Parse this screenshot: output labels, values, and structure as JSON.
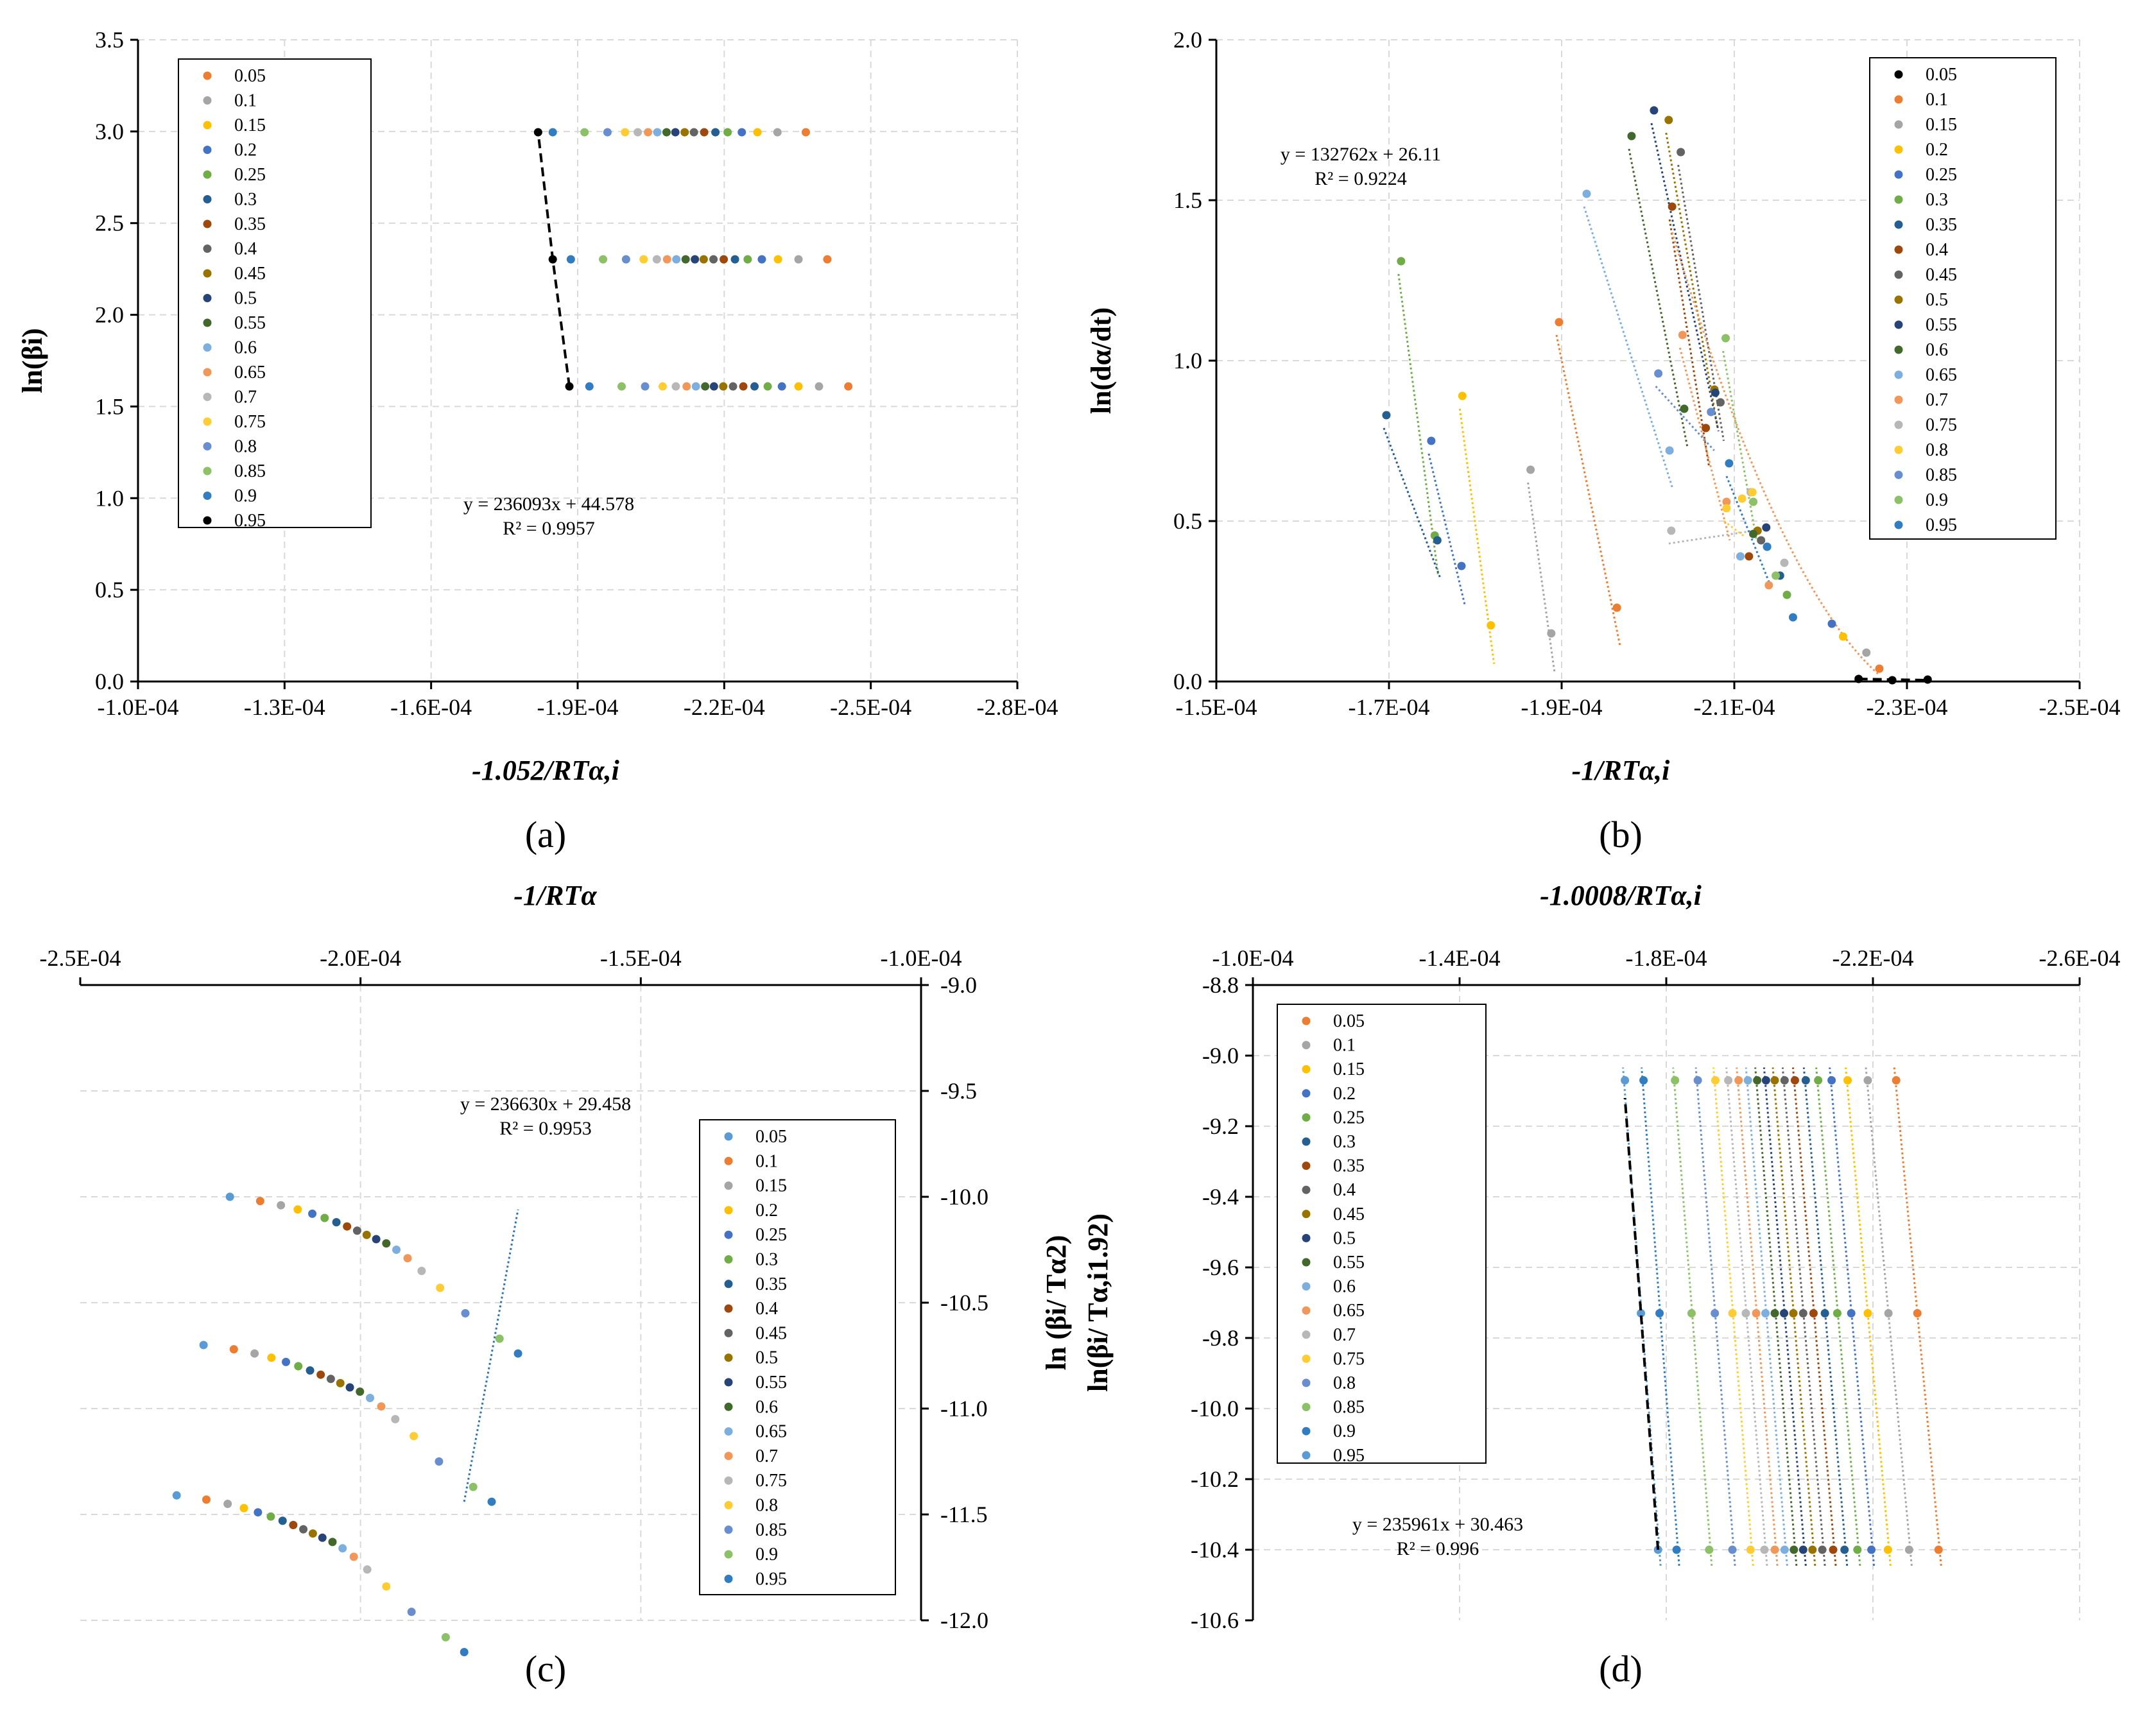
{
  "chart_data": [
    {
      "id": "a",
      "type": "scatter",
      "panel_label": "(a)",
      "xlabel": "-1.052/RTα,i",
      "ylabel": "ln(βi)",
      "xlim": [
        -0.0001,
        -0.00028
      ],
      "ylim": [
        0,
        3.5
      ],
      "xticks": [
        -0.0001,
        -0.00013,
        -0.00016,
        -0.00019,
        -0.00022,
        -0.00025,
        -0.00028
      ],
      "xtick_labels": [
        "-1.0E-04",
        "-1.3E-04",
        "-1.6E-04",
        "-1.9E-04",
        "-2.2E-04",
        "-2.5E-04",
        "-2.8E-04"
      ],
      "yticks": [
        0,
        0.5,
        1,
        1.5,
        2,
        2.5,
        3,
        3.5
      ],
      "ytick_labels": [
        "0.0",
        "0.5",
        "1.0",
        "1.5",
        "2.0",
        "2.5",
        "3.0",
        "3.5"
      ],
      "grid": true,
      "legend_position": "top-left",
      "legend": [
        "0.05",
        "0.1",
        "0.15",
        "0.2",
        "0.25",
        "0.3",
        "0.35",
        "0.4",
        "0.45",
        "0.5",
        "0.55",
        "0.6",
        "0.65",
        "0.7",
        "0.75",
        "0.8",
        "0.85",
        "0.9",
        "0.95"
      ],
      "legend_colors": [
        "#ED7D31",
        "#A5A5A5",
        "#FFC000",
        "#4472C4",
        "#70AD47",
        "#255E91",
        "#9E480E",
        "#636363",
        "#997300",
        "#264478",
        "#43682B",
        "#7CAFDD",
        "#F1975A",
        "#B7B7B7",
        "#FFCD33",
        "#698ED0",
        "#8CC168",
        "#327DC2",
        "#000000"
      ],
      "series_y": [
        1.6094,
        2.3026,
        2.9957
      ],
      "series_x": [
        [
          -0.0002454,
          -0.0002394,
          -0.0002352,
          -0.0002318,
          -0.0002289,
          -0.0002262,
          -0.0002239,
          -0.0002218,
          -0.0002198,
          -0.0002179,
          -0.0002161,
          -0.0002142,
          -0.0002123,
          -0.0002101,
          -0.0002074,
          -0.0002038,
          -0.000199,
          -0.0001924,
          -0.0001883
        ],
        [
          -0.0002411,
          -0.0002352,
          -0.000231,
          -0.0002277,
          -0.0002248,
          -0.0002222,
          -0.0002199,
          -0.0002178,
          -0.0002158,
          -0.000214,
          -0.0002121,
          -0.0002102,
          -0.0002083,
          -0.0002062,
          -0.0002035,
          -0.0001999,
          -0.0001952,
          -0.0001886,
          -0.0001849
        ],
        [
          -0.0002367,
          -0.0002309,
          -0.0002268,
          -0.0002236,
          -0.0002207,
          -0.0002182,
          -0.0002159,
          -0.0002138,
          -0.0002119,
          -0.00021,
          -0.0002082,
          -0.0002063,
          -0.0002044,
          -0.0002023,
          -0.0001997,
          -0.0001961,
          -0.0001914,
          -0.0001849,
          -0.0001819
        ]
      ],
      "fit_line": {
        "x": [
          -0.0001883,
          -0.0001849,
          -0.0001819
        ],
        "y": [
          1.6094,
          2.3026,
          2.9957
        ],
        "color": "#000000"
      },
      "annotation": {
        "equation": "y = 236093x + 44.578",
        "r2": "R² = 0.9957"
      }
    },
    {
      "id": "b",
      "type": "scatter",
      "panel_label": "(b)",
      "xlabel": "-1/RTα,i",
      "ylabel": "ln(dα/dt)",
      "xlim": [
        -0.00015,
        -0.00025
      ],
      "ylim": [
        0,
        2.0
      ],
      "xticks": [
        -0.00015,
        -0.00017,
        -0.00019,
        -0.00021,
        -0.00023,
        -0.00025
      ],
      "xtick_labels": [
        "-1.5E-04",
        "-1.7E-04",
        "-1.9E-04",
        "-2.1E-04",
        "-2.3E-04",
        "-2.5E-04"
      ],
      "yticks": [
        0,
        0.5,
        1,
        1.5,
        2
      ],
      "ytick_labels": [
        "0.0",
        "0.5",
        "1.0",
        "1.5",
        "2.0"
      ],
      "grid": true,
      "legend_position": "top-right",
      "legend": [
        "0.05",
        "0.1",
        "0.15",
        "0.2",
        "0.25",
        "0.3",
        "0.35",
        "0.4",
        "0.45",
        "0.5",
        "0.55",
        "0.6",
        "0.65",
        "0.7",
        "0.75",
        "0.8",
        "0.85",
        "0.9",
        "0.95"
      ],
      "legend_colors": [
        "#000000",
        "#ED7D31",
        "#A5A5A5",
        "#FFC000",
        "#4472C4",
        "#70AD47",
        "#255E91",
        "#9E480E",
        "#636363",
        "#997300",
        "#264478",
        "#43682B",
        "#7CAFDD",
        "#F1975A",
        "#B7B7B7",
        "#FFCD33",
        "#698ED0",
        "#8CC168",
        "#327DC2"
      ],
      "series_points": [
        [
          [
            -0.0002324,
            0.006
          ],
          [
            -0.0002283,
            0.004
          ],
          [
            -0.0002244,
            0.008
          ]
        ],
        [
          [
            -0.0002268,
            0.04
          ],
          [
            -0.0001964,
            0.23
          ],
          [
            -0.0001897,
            1.12
          ]
        ],
        [
          [
            -0.0002253,
            0.09
          ],
          [
            -0.0001888,
            0.15
          ],
          [
            -0.0001864,
            0.66
          ]
        ],
        [
          [
            -0.0002226,
            0.14
          ],
          [
            -0.0001818,
            0.175
          ],
          [
            -0.0001785,
            0.89
          ]
        ],
        [
          [
            -0.0002213,
            0.18
          ],
          [
            -0.0001784,
            0.36
          ],
          [
            -0.0001749,
            0.75
          ]
        ],
        [
          [
            -0.0002161,
            0.27
          ],
          [
            -0.0001753,
            0.455
          ],
          [
            -0.0001714,
            1.31
          ]
        ],
        [
          [
            -0.0002153,
            0.33
          ],
          [
            -0.0001756,
            0.44
          ],
          [
            -0.0001697,
            0.83
          ]
        ],
        [
          [
            -0.0002117,
            0.39
          ],
          [
            -0.0002067,
            0.79
          ],
          [
            -0.0002028,
            1.48
          ]
        ],
        [
          [
            -0.0002131,
            0.44
          ],
          [
            -0.0002084,
            0.87
          ],
          [
            -0.0002038,
            1.65
          ]
        ],
        [
          [
            -0.0002127,
            0.47
          ],
          [
            -0.0002077,
            0.91
          ],
          [
            -0.0002024,
            1.75
          ]
        ],
        [
          [
            -0.0002137,
            0.48
          ],
          [
            -0.0002078,
            0.9
          ],
          [
            -0.0002007,
            1.78
          ]
        ],
        [
          [
            -0.0002122,
            0.46
          ],
          [
            -0.0002042,
            0.85
          ],
          [
            -0.0001981,
            1.7
          ]
        ],
        [
          [
            -0.0002107,
            0.39
          ],
          [
            -0.0002025,
            0.72
          ],
          [
            -0.0001929,
            1.52
          ]
        ],
        [
          [
            -0.000214,
            0.3
          ],
          [
            -0.0002091,
            0.56
          ],
          [
            -0.000204,
            1.08
          ]
        ],
        [
          [
            -0.0002158,
            0.37
          ],
          [
            -0.0002119,
            0.59
          ],
          [
            -0.0002027,
            0.47
          ]
        ],
        [
          [
            -0.0002121,
            0.59
          ],
          [
            -0.0002109,
            0.57
          ],
          [
            -0.0002091,
            0.54
          ]
        ],
        [
          [
            -0.0002138,
            0.42
          ],
          [
            -0.0002073,
            0.84
          ],
          [
            -0.0002012,
            0.96
          ]
        ],
        [
          [
            -0.0002148,
            0.33
          ],
          [
            -0.0002122,
            0.56
          ],
          [
            -0.000209,
            1.07
          ]
        ],
        [
          [
            -0.0002168,
            0.2
          ],
          [
            -0.0002138,
            0.42
          ],
          [
            -0.0002094,
            0.68
          ]
        ]
      ],
      "annotation": {
        "equation": "y = 132762x + 26.11",
        "r2": "R² = 0.9224"
      }
    },
    {
      "id": "c",
      "type": "scatter",
      "panel_label": "(c)",
      "xlabel": "-1/RTα",
      "ylabel": "ln (βi/ Tα2)",
      "xlim": [
        -0.00025,
        -0.0001
      ],
      "ylim": [
        -12.0,
        -9.0
      ],
      "xticks": [
        -0.00025,
        -0.0002,
        -0.00015,
        -0.0001
      ],
      "xtick_labels": [
        "-2.5E-04",
        "-2.0E-04",
        "-1.5E-04",
        "-1.0E-04"
      ],
      "yticks": [
        -9,
        -9.5,
        -10,
        -10.5,
        -11,
        -11.5,
        -12
      ],
      "ytick_labels": [
        "-9.0",
        "-9.5",
        "-10.0",
        "-10.5",
        "-11.0",
        "-11.5",
        "-12.0"
      ],
      "grid": true,
      "legend_position": "middle-right",
      "legend": [
        "0.05",
        "0.1",
        "0.15",
        "0.2",
        "0.25",
        "0.3",
        "0.35",
        "0.4",
        "0.45",
        "0.5",
        "0.55",
        "0.6",
        "0.65",
        "0.7",
        "0.75",
        "0.8",
        "0.85",
        "0.9",
        "0.95"
      ],
      "legend_colors": [
        "#5B9BD5",
        "#ED7D31",
        "#A5A5A5",
        "#FFC000",
        "#4472C4",
        "#70AD47",
        "#255E91",
        "#9E480E",
        "#636363",
        "#997300",
        "#264478",
        "#43682B",
        "#7CAFDD",
        "#F1975A",
        "#B7B7B7",
        "#FFCD33",
        "#698ED0",
        "#8CC168",
        "#327DC2"
      ],
      "series_y": [
        -11.44,
        -10.74,
        -10.06
      ],
      "series_x": [
        [
          -0.0002328,
          -0.0002275,
          -0.0002237,
          -0.0002208,
          -0.0002183,
          -0.000216,
          -0.0002139,
          -0.000212,
          -0.0002102,
          -0.0002085,
          -0.0002068,
          -0.000205,
          -0.0002032,
          -0.0002012,
          -0.0001988,
          -0.0001954,
          -0.0001909,
          -0.0001848,
          -0.0001815
        ],
        [
          -0.000228,
          -0.0002226,
          -0.0002189,
          -0.0002159,
          -0.0002133,
          -0.0002111,
          -0.000209,
          -0.0002071,
          -0.0002053,
          -0.0002036,
          -0.0002019,
          -0.0002001,
          -0.0001983,
          -0.0001963,
          -0.0001938,
          -0.0001905,
          -0.000186,
          -0.0001799,
          -0.0001766
        ],
        [
          -0.0002233,
          -0.0002179,
          -0.0002142,
          -0.0002112,
          -0.0002086,
          -0.0002064,
          -0.0002043,
          -0.0002024,
          -0.0002006,
          -0.0001989,
          -0.0001972,
          -0.0001954,
          -0.0001936,
          -0.0001916,
          -0.0001891,
          -0.0001858,
          -0.0001813,
          -0.0001752,
          -0.0001719
        ]
      ],
      "series_y_points": [
        [
          -11.41,
          -11.43,
          -11.45,
          -11.47,
          -11.49,
          -11.51,
          -11.53,
          -11.55,
          -11.57,
          -11.59,
          -11.61,
          -11.63,
          -11.66,
          -11.7,
          -11.76,
          -11.84,
          -11.96,
          -12.08,
          -12.15
        ],
        [
          -10.7,
          -10.72,
          -10.74,
          -10.76,
          -10.78,
          -10.8,
          -10.82,
          -10.84,
          -10.86,
          -10.88,
          -10.9,
          -10.92,
          -10.95,
          -10.99,
          -11.05,
          -11.13,
          -11.25,
          -11.37,
          -11.44
        ],
        [
          -10.0,
          -10.02,
          -10.04,
          -10.06,
          -10.08,
          -10.1,
          -10.12,
          -10.14,
          -10.16,
          -10.18,
          -10.2,
          -10.22,
          -10.25,
          -10.29,
          -10.35,
          -10.43,
          -10.55,
          -10.67,
          -10.74
        ]
      ],
      "fit_line": {
        "x": [
          -0.0001815,
          -0.0001766,
          -0.0001719
        ],
        "y": [
          -11.44,
          -10.74,
          -10.06
        ],
        "color": "#2E75B6"
      },
      "annotation": {
        "equation": "y = 236630x + 29.458",
        "r2": "R² = 0.9953"
      }
    },
    {
      "id": "d",
      "type": "scatter",
      "panel_label": "(d)",
      "xlabel": "-1.0008/RTα,i",
      "ylabel": "ln(βi/ Tα,i1.92)",
      "xlim": [
        -0.0001,
        -0.00026
      ],
      "ylim": [
        -10.6,
        -8.8
      ],
      "xticks": [
        -0.0001,
        -0.00014,
        -0.00018,
        -0.00022,
        -0.00026
      ],
      "xtick_labels": [
        "-1.0E-04",
        "-1.4E-04",
        "-1.8E-04",
        "-2.2E-04",
        "-2.6E-04"
      ],
      "yticks": [
        -8.8,
        -9.0,
        -9.2,
        -9.4,
        -9.6,
        -9.8,
        -10.0,
        -10.2,
        -10.4,
        -10.6
      ],
      "ytick_labels": [
        "-8.8",
        "-9.0",
        "-9.2",
        "-9.4",
        "-9.6",
        "-9.8",
        "-10.0",
        "-10.2",
        "-10.4",
        "-10.6"
      ],
      "grid": true,
      "legend_position": "top-left",
      "legend": [
        "0.05",
        "0.1",
        "0.15",
        "0.2",
        "0.25",
        "0.3",
        "0.35",
        "0.4",
        "0.45",
        "0.5",
        "0.55",
        "0.6",
        "0.65",
        "0.7",
        "0.75",
        "0.8",
        "0.85",
        "0.9",
        "0.95"
      ],
      "legend_colors": [
        "#ED7D31",
        "#A5A5A5",
        "#FFC000",
        "#4472C4",
        "#70AD47",
        "#255E91",
        "#9E480E",
        "#636363",
        "#997300",
        "#264478",
        "#43682B",
        "#7CAFDD",
        "#F1975A",
        "#B7B7B7",
        "#FFCD33",
        "#698ED0",
        "#8CC168",
        "#327DC2",
        "#5B9BD5"
      ],
      "series_y": [
        -10.4,
        -9.73,
        -9.07
      ],
      "series_x": [
        [
          -0.0002327,
          -0.000227,
          -0.0002229,
          -0.0002197,
          -0.000217,
          -0.0002145,
          -0.0002123,
          -0.0002102,
          -0.0002083,
          -0.0002065,
          -0.0002047,
          -0.0002029,
          -0.000201,
          -0.000199,
          -0.0001963,
          -0.0001928,
          -0.0001883,
          -0.000182,
          -0.0001784
        ],
        [
          -0.0002286,
          -0.000223,
          -0.000219,
          -0.0002158,
          -0.0002131,
          -0.0002107,
          -0.0002085,
          -0.0002065,
          -0.0002046,
          -0.0002028,
          -0.000201,
          -0.0001992,
          -0.0001974,
          -0.0001954,
          -0.0001928,
          -0.0001894,
          -0.0001849,
          -0.0001787,
          -0.0001751
        ],
        [
          -0.0002245,
          -0.000219,
          -0.0002151,
          -0.000212,
          -0.0002094,
          -0.000207,
          -0.0002049,
          -0.0002029,
          -0.000201,
          -0.0001993,
          -0.0001976,
          -0.0001958,
          -0.000194,
          -0.000192,
          -0.0001895,
          -0.0001861,
          -0.0001817,
          -0.0001756,
          -0.000172
        ]
      ],
      "fit_line": {
        "x": [
          -0.0001784,
          -0.0001751,
          -0.000172
        ],
        "y": [
          -10.4,
          -9.73,
          -9.12
        ],
        "color": "#000000"
      },
      "annotation": {
        "equation": "y = 235961x + 30.463",
        "r2": "R² = 0.996"
      }
    }
  ]
}
